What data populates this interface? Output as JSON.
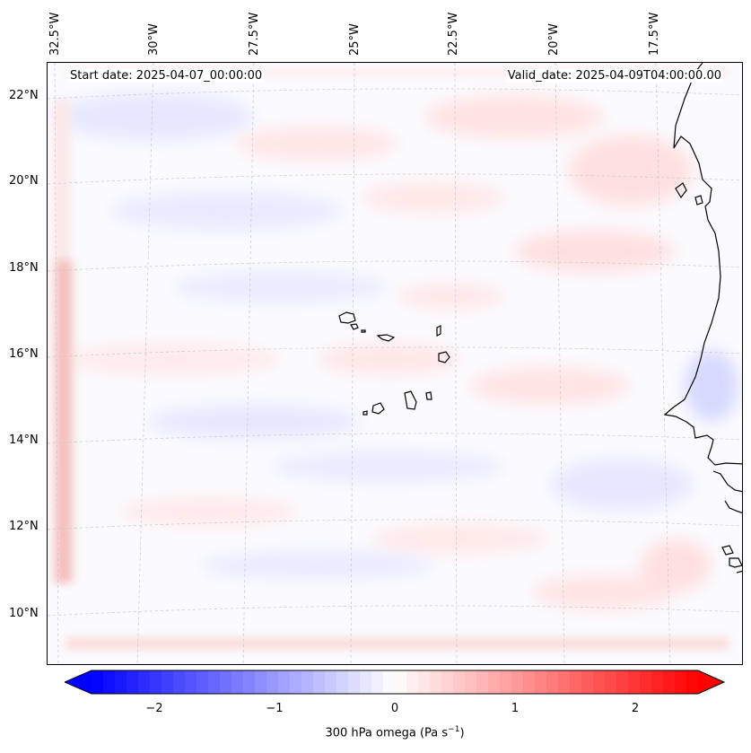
{
  "map": {
    "title_left": "Start date: 2025-04-07_00:00:00",
    "title_right": "Valid_date: 2025-04-09T04:00:00.00",
    "lon_labels": [
      "32.5°W",
      "30°W",
      "27.5°W",
      "25°W",
      "22.5°W",
      "20°W",
      "17.5°W"
    ],
    "lat_labels": [
      "22°N",
      "20°N",
      "18°N",
      "16°N",
      "14°N",
      "12°N",
      "10°N"
    ],
    "features": [
      "Cape Verde islands",
      "West African coastline"
    ]
  },
  "colorbar": {
    "ticks": [
      "−2",
      "−1",
      "0",
      "1",
      "2"
    ],
    "tick_values": [
      -2,
      -1,
      0,
      1,
      2
    ],
    "range": [
      -2.6,
      2.6
    ],
    "title_prefix": "300 hPa omega (Pa s",
    "title_exp": "−1",
    "title_suffix": ")",
    "color_min": "#0000ff",
    "color_mid": "#ffffff",
    "color_max": "#ff0000"
  }
}
